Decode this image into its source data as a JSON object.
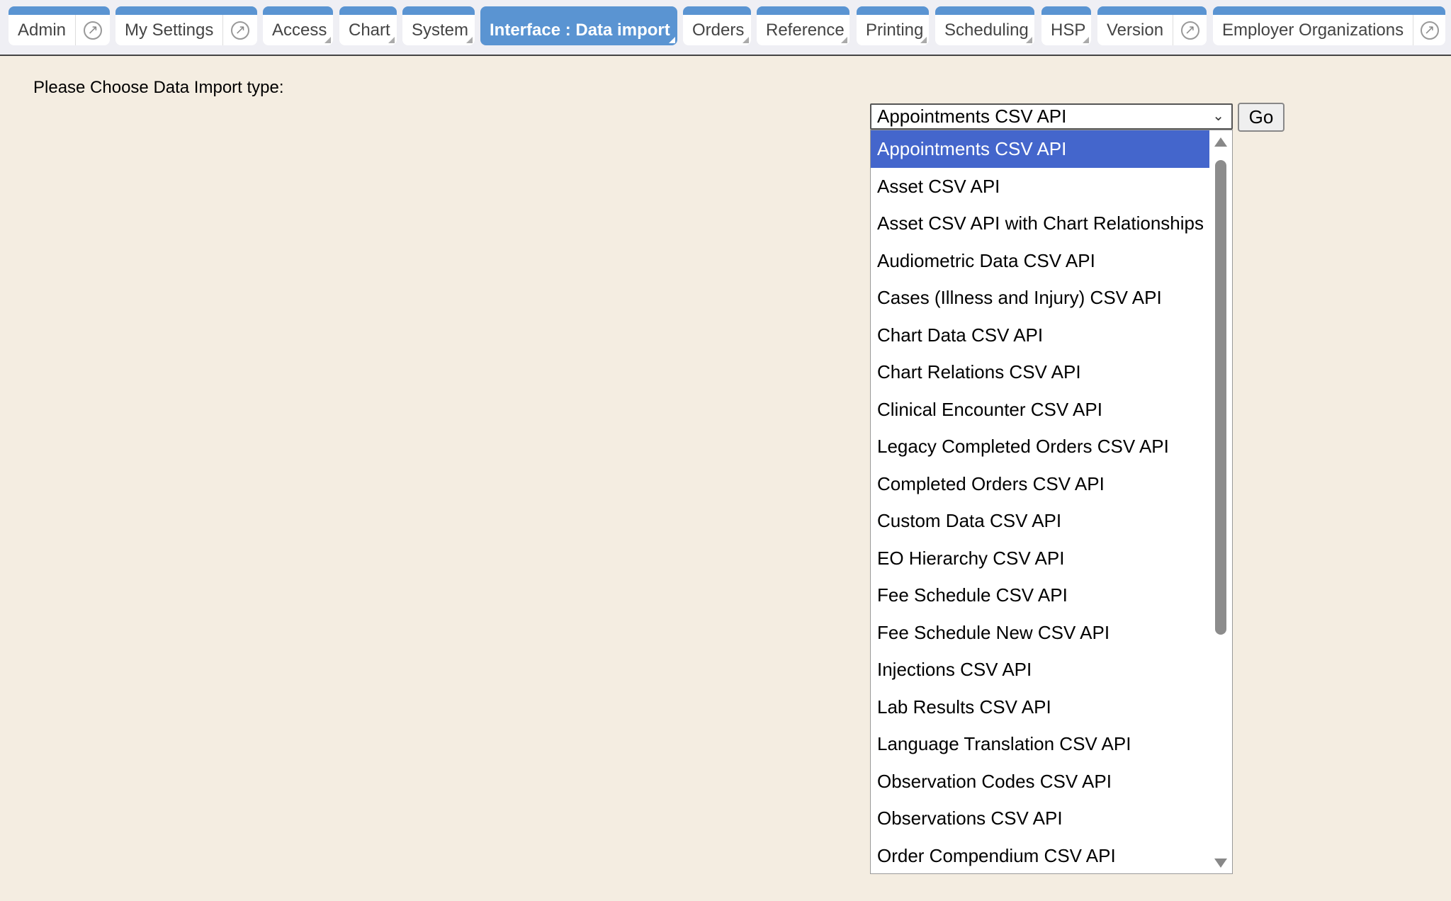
{
  "tabs": [
    {
      "label": "Admin",
      "external": true
    },
    {
      "label": "My Settings",
      "external": true
    },
    {
      "label": "Access"
    },
    {
      "label": "Chart"
    },
    {
      "label": "System"
    },
    {
      "label": "Interface : Data import",
      "active": true
    },
    {
      "label": "Orders"
    },
    {
      "label": "Reference"
    },
    {
      "label": "Printing"
    },
    {
      "label": "Scheduling"
    },
    {
      "label": "HSP"
    },
    {
      "label": "Version",
      "external": true
    },
    {
      "label": "Employer Organizations",
      "external": true
    }
  ],
  "main": {
    "prompt": "Please Choose Data Import type:",
    "select_value": "Appointments CSV API",
    "go_label": "Go",
    "options": [
      "Appointments CSV API",
      "Asset CSV API",
      "Asset CSV API with Chart Relationships",
      "Audiometric Data CSV API",
      "Cases (Illness and Injury) CSV API",
      "Chart Data CSV API",
      "Chart Relations CSV API",
      "Clinical Encounter CSV API",
      "Legacy Completed Orders CSV API",
      "Completed Orders CSV API",
      "Custom Data CSV API",
      "EO Hierarchy CSV API",
      "Fee Schedule CSV API",
      "Fee Schedule New CSV API",
      "Injections CSV API",
      "Lab Results CSV API",
      "Language Translation CSV API",
      "Observation Codes CSV API",
      "Observations CSV API",
      "Order Compendium CSV API"
    ],
    "selected_index": 0
  },
  "colors": {
    "tab_blue": "#5a94d2",
    "highlight": "#4466cc",
    "background": "#f4ede1"
  }
}
